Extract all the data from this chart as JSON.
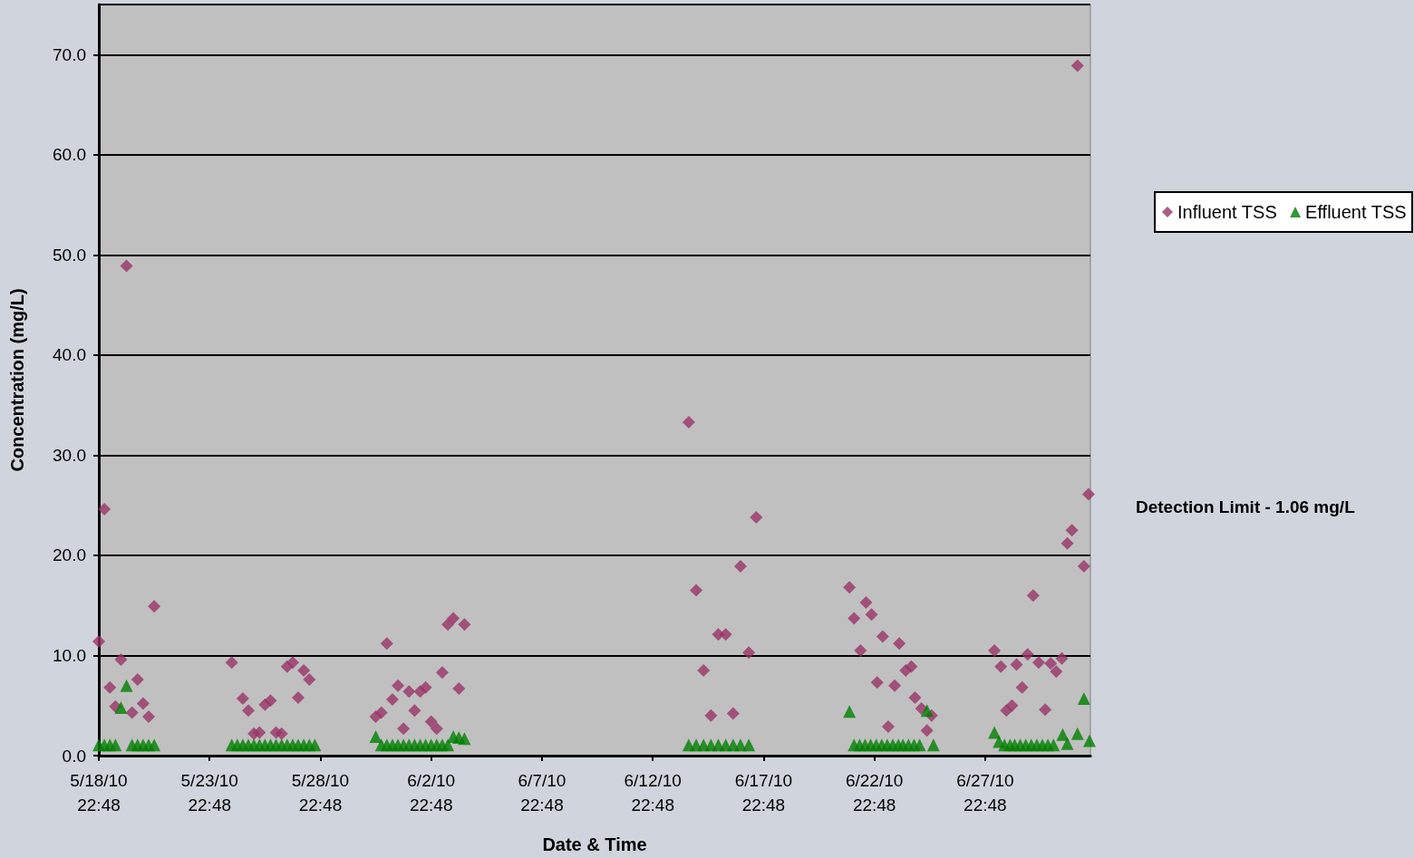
{
  "chart_data": {
    "type": "scatter",
    "xlabel": "Date & Time",
    "ylabel": "Concentration (mg/L)",
    "annotations": [
      "Detection Limit - 1.06 mg/L"
    ],
    "xlim": [
      "--05-18T22:48",
      "--07-02T16:48"
    ],
    "xticks": [
      {
        "value": "--05-18T22:48",
        "label": "5/18/10\n22:48"
      },
      {
        "value": "--05-23T22:48",
        "label": "5/23/10\n22:48"
      },
      {
        "value": "--05-28T22:48",
        "label": "5/28/10\n22:48"
      },
      {
        "value": "--06-02T22:48",
        "label": "6/2/10\n22:48"
      },
      {
        "value": "--06-07T22:48",
        "label": "6/7/10\n22:48"
      },
      {
        "value": "--06-12T22:48",
        "label": "6/12/10\n22:48"
      },
      {
        "value": "--06-17T22:48",
        "label": "6/17/10\n22:48"
      },
      {
        "value": "--06-22T22:48",
        "label": "6/22/10\n22:48"
      },
      {
        "value": "--06-27T22:48",
        "label": "6/27/10\n22:48"
      }
    ],
    "ylim": [
      0,
      75
    ],
    "yticks": [
      {
        "value": 0,
        "label": "0.0"
      },
      {
        "value": 10,
        "label": "10.0"
      },
      {
        "value": 20,
        "label": "20.0"
      },
      {
        "value": 30,
        "label": "30.0"
      },
      {
        "value": 40,
        "label": "40.0"
      },
      {
        "value": 50,
        "label": "50.0"
      },
      {
        "value": 60,
        "label": "60.0"
      },
      {
        "value": 70,
        "label": "70.0"
      }
    ],
    "grid": "y",
    "legend": "right",
    "series": [
      {
        "name": "Influent TSS",
        "color": "#993366",
        "marker": "diamond",
        "x": [
          "--05-18T22:48",
          "--05-19T04:48",
          "--05-19T10:48",
          "--05-19T16:48",
          "--05-19T22:48",
          "--05-20T04:48",
          "--05-20T10:48",
          "--05-20T16:48",
          "--05-20T22:48",
          "--05-21T04:48",
          "--05-21T10:48",
          "--05-24T22:48",
          "--05-25T10:48",
          "--05-25T16:48",
          "--05-25T22:48",
          "--05-26T04:48",
          "--05-26T10:48",
          "--05-26T16:48",
          "--05-26T22:48",
          "--05-27T04:48",
          "--05-27T10:48",
          "--05-27T16:48",
          "--05-27T22:48",
          "--05-28T04:48",
          "--05-28T10:48",
          "--05-31T10:48",
          "--05-31T16:48",
          "--05-31T22:48",
          "--06-01T04:48",
          "--06-01T10:48",
          "--06-01T16:48",
          "--06-01T22:48",
          "--06-02T04:48",
          "--06-02T10:48",
          "--06-02T16:48",
          "--06-02T22:48",
          "--06-03T04:48",
          "--06-03T10:48",
          "--06-03T16:48",
          "--06-03T22:48",
          "--06-04T04:48",
          "--06-04T10:48",
          "--06-14T13:48",
          "--06-14T21:48",
          "--06-15T05:48",
          "--06-15T13:48",
          "--06-15T21:48",
          "--06-16T05:48",
          "--06-16T13:48",
          "--06-16T21:48",
          "--06-17T06:48",
          "--06-17T14:48",
          "--06-21T19:48",
          "--06-22T00:48",
          "--06-22T07:48",
          "--06-22T13:48",
          "--06-22T19:48",
          "--06-23T01:48",
          "--06-23T07:48",
          "--06-23T13:48",
          "--06-23T20:48",
          "--06-24T01:48",
          "--06-24T08:48",
          "--06-24T14:48",
          "--06-24T18:48",
          "--06-25T01:48",
          "--06-25T07:48",
          "--06-25T12:48",
          "--06-28T08:48",
          "--06-28T15:48",
          "--06-28T21:48",
          "--06-29T03:48",
          "--06-29T08:48",
          "--06-29T14:48",
          "--06-29T20:48",
          "--06-30T02:48",
          "--06-30T08:48",
          "--06-30T15:48",
          "--06-30T21:48",
          "--07-01T03:48",
          "--07-01T09:48",
          "--07-01T15:48",
          "--07-01T20:48",
          "--07-02T02:48",
          "--07-02T09:48",
          "--07-02T14:48"
        ],
        "values": [
          11.4,
          24.6,
          6.8,
          4.9,
          9.6,
          48.9,
          4.3,
          7.6,
          5.2,
          3.9,
          14.9,
          9.3,
          5.7,
          4.5,
          2.2,
          2.3,
          5.1,
          5.5,
          2.3,
          2.2,
          8.9,
          9.3,
          5.8,
          8.5,
          7.6,
          3.9,
          4.3,
          11.2,
          5.6,
          7.0,
          2.7,
          6.4,
          4.5,
          6.4,
          6.8,
          3.4,
          2.7,
          8.3,
          13.1,
          13.7,
          6.7,
          13.1,
          33.3,
          16.5,
          8.5,
          4.0,
          12.1,
          12.1,
          4.2,
          18.9,
          10.3,
          23.8,
          16.8,
          13.7,
          10.5,
          15.3,
          14.1,
          7.3,
          11.9,
          2.9,
          7.0,
          11.2,
          8.5,
          8.9,
          5.8,
          4.7,
          2.5,
          4.0,
          10.5,
          8.9,
          4.5,
          5.0,
          9.1,
          6.8,
          10.1,
          16.0,
          9.3,
          4.6,
          9.2,
          8.4,
          9.7,
          21.2,
          22.5,
          68.9,
          18.9,
          26.1
        ]
      },
      {
        "name": "Effluent TSS",
        "color": "#008000",
        "marker": "triangle",
        "x": [
          "--05-18T22:48",
          "--05-19T04:48",
          "--05-19T10:48",
          "--05-19T16:48",
          "--05-19T22:48",
          "--05-20T04:48",
          "--05-20T10:48",
          "--05-20T16:48",
          "--05-20T22:48",
          "--05-21T04:48",
          "--05-21T10:48",
          "--05-24T22:48",
          "--05-25T04:48",
          "--05-25T10:48",
          "--05-25T16:48",
          "--05-25T22:48",
          "--05-26T04:48",
          "--05-26T10:48",
          "--05-26T16:48",
          "--05-26T22:48",
          "--05-27T04:48",
          "--05-27T10:48",
          "--05-27T16:48",
          "--05-27T22:48",
          "--05-28T04:48",
          "--05-28T10:48",
          "--05-28T16:48",
          "--05-31T10:48",
          "--05-31T16:48",
          "--05-31T22:48",
          "--06-01T04:48",
          "--06-01T10:48",
          "--06-01T16:48",
          "--06-01T22:48",
          "--06-02T04:48",
          "--06-02T10:48",
          "--06-02T16:48",
          "--06-02T22:48",
          "--06-03T04:48",
          "--06-03T10:48",
          "--06-03T16:48",
          "--06-03T22:48",
          "--06-04T04:48",
          "--06-04T10:48",
          "--06-14T13:48",
          "--06-14T21:48",
          "--06-15T05:48",
          "--06-15T13:48",
          "--06-15T21:48",
          "--06-16T05:48",
          "--06-16T13:48",
          "--06-16T21:48",
          "--06-17T06:48",
          "--06-21T19:48",
          "--06-22T00:48",
          "--06-22T06:48",
          "--06-22T12:48",
          "--06-22T18:48",
          "--06-23T00:48",
          "--06-23T06:48",
          "--06-23T12:48",
          "--06-23T18:48",
          "--06-24T00:48",
          "--06-24T05:48",
          "--06-24T11:48",
          "--06-24T17:48",
          "--06-24T23:48",
          "--06-25T07:48",
          "--06-25T14:48",
          "--06-28T08:48",
          "--06-28T13:48",
          "--06-28T19:48",
          "--06-29T01:48",
          "--06-29T06:48",
          "--06-29T12:48",
          "--06-29T18:48",
          "--06-30T00:48",
          "--06-30T06:48",
          "--06-30T12:48",
          "--06-30T18:48",
          "--07-01T00:48",
          "--07-01T10:48",
          "--07-01T15:48",
          "--07-02T02:48",
          "--07-02T09:48",
          "--07-02T15:48"
        ],
        "values": [
          1.06,
          1.06,
          1.06,
          1.06,
          4.8,
          7.0,
          1.06,
          1.06,
          1.06,
          1.06,
          1.06,
          1.06,
          1.06,
          1.06,
          1.06,
          1.06,
          1.06,
          1.06,
          1.06,
          1.06,
          1.06,
          1.06,
          1.06,
          1.06,
          1.06,
          1.06,
          1.06,
          1.9,
          1.06,
          1.06,
          1.06,
          1.06,
          1.06,
          1.06,
          1.06,
          1.06,
          1.06,
          1.06,
          1.06,
          1.06,
          1.06,
          1.9,
          1.8,
          1.7,
          1.06,
          1.06,
          1.06,
          1.06,
          1.06,
          1.06,
          1.06,
          1.06,
          1.06,
          4.4,
          1.06,
          1.06,
          1.06,
          1.06,
          1.06,
          1.06,
          1.06,
          1.06,
          1.06,
          1.06,
          1.06,
          1.06,
          1.06,
          4.5,
          1.06,
          2.3,
          1.4,
          1.06,
          1.06,
          1.06,
          1.06,
          1.06,
          1.06,
          1.06,
          1.06,
          1.06,
          1.06,
          2.1,
          1.2,
          2.2,
          5.7,
          1.5
        ]
      }
    ]
  }
}
